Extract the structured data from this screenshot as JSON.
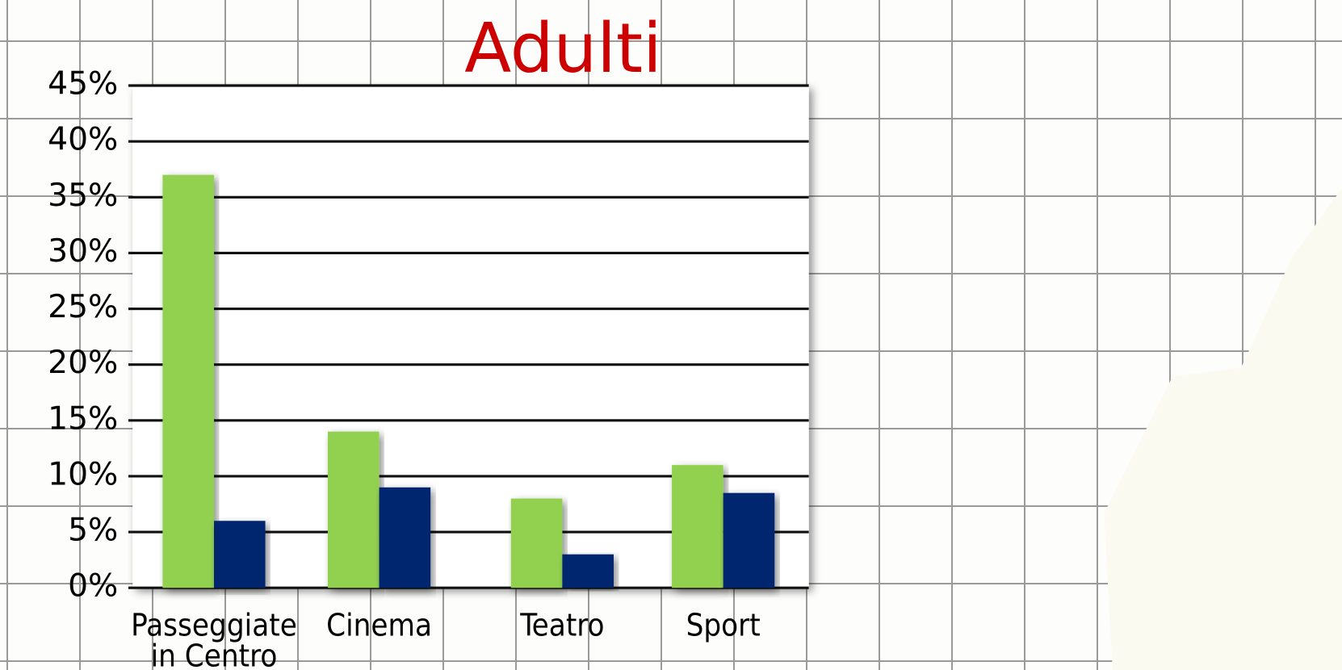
{
  "chart_data": {
    "type": "bar",
    "title": "Adulti",
    "categories": [
      "Passeggiate in Centro",
      "Cinema",
      "Teatro",
      "Sport"
    ],
    "series": [
      {
        "color": "#92d050",
        "values": [
          37,
          14,
          8,
          11
        ]
      },
      {
        "color": "#002570",
        "values": [
          6,
          9,
          3,
          8.5
        ]
      }
    ],
    "ylim": [
      0,
      45
    ],
    "yticks": [
      {
        "value": 0,
        "label": "0%"
      },
      {
        "value": 5,
        "label": "5%"
      },
      {
        "value": 10,
        "label": "10%"
      },
      {
        "value": 15,
        "label": "15%"
      },
      {
        "value": 20,
        "label": "20%"
      },
      {
        "value": 25,
        "label": "25%"
      },
      {
        "value": 30,
        "label": "30%"
      },
      {
        "value": 35,
        "label": "35%"
      },
      {
        "value": 40,
        "label": "40%"
      },
      {
        "value": 45,
        "label": "45%"
      }
    ],
    "grid": true
  }
}
